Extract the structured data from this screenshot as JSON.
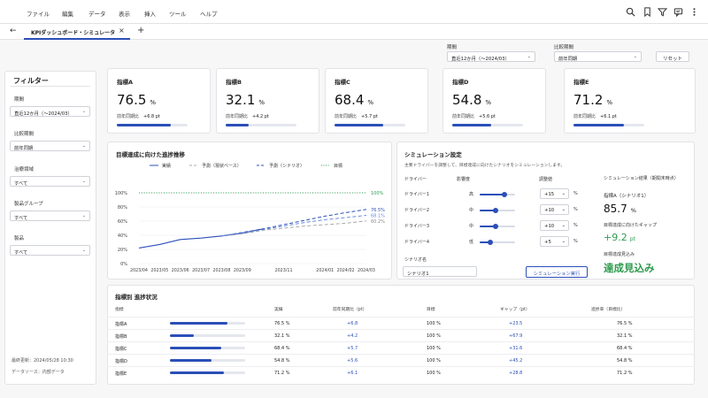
{
  "menu": [
    "ファイル",
    "編集",
    "データ",
    "表示",
    "挿入",
    "ツール",
    "ヘルプ"
  ],
  "toolbar_icons": [
    "search-icon",
    "bookmark-icon",
    "filter-icon",
    "comment-icon",
    "more-icon"
  ],
  "tab": {
    "label": "KPIダッシュボード・シミュレータ",
    "close": "×",
    "add": "+",
    "back": "←"
  },
  "header": {
    "period_label": "期間",
    "period_value": "直近12か月（〜2024/03）",
    "compare_label": "比較期間",
    "compare_value": "前年同期",
    "reset": "リセット"
  },
  "filters": {
    "title": "フィルター",
    "items": [
      {
        "label": "期間",
        "value": "直近12か月（〜2024/03）"
      },
      {
        "label": "比較期間",
        "value": "前年同期"
      },
      {
        "label": "治療領域",
        "value": "すべて"
      },
      {
        "label": "製品グループ",
        "value": "すべて"
      },
      {
        "label": "製品",
        "value": "すべて"
      }
    ],
    "updated": "最終更新：2024/05/28 10:30",
    "source": "データソース：内部データ"
  },
  "kpis": [
    {
      "title": "指標A",
      "value": "76.5",
      "unit": "%",
      "sub_label": "前年同期比",
      "sub_value": "+6.8 pt",
      "progress": 0.765
    },
    {
      "title": "指標B",
      "value": "32.1",
      "unit": "%",
      "sub_label": "前年同期比",
      "sub_value": "+4.2 pt",
      "progress": 0.321
    },
    {
      "title": "指標C",
      "value": "68.4",
      "unit": "%",
      "sub_label": "前年同期比",
      "sub_value": "+5.7 pt",
      "progress": 0.684
    },
    {
      "title": "指標D",
      "value": "54.8",
      "unit": "%",
      "sub_label": "前年同期比",
      "sub_value": "+5.6 pt",
      "progress": 0.548
    },
    {
      "title": "指標E",
      "value": "71.2",
      "unit": "%",
      "sub_label": "前年同期比",
      "sub_value": "+6.1 pt",
      "progress": 0.712
    }
  ],
  "chart_data": {
    "type": "line",
    "title": "目標達成に向けた進捗推移",
    "x": [
      "2023/04",
      "2023/05",
      "2023/06",
      "2023/07",
      "2023/08",
      "2023/09",
      "2023/10",
      "2023/11",
      "2023/12",
      "2024/01",
      "2024/02",
      "2024/03"
    ],
    "x_tick_labels": [
      "2023/04",
      "2023/05",
      "2023/06",
      "2023/07",
      "2023/08",
      "2023/09",
      "2023/11",
      "2024/01",
      "2024/02",
      "2024/03"
    ],
    "ylim": [
      0,
      100
    ],
    "y_ticks": [
      "0%",
      "20%",
      "40%",
      "60%",
      "80%",
      "100%"
    ],
    "series": [
      {
        "name": "実績",
        "color": "#2b4fb8",
        "style": "solid",
        "values": [
          22,
          27,
          34,
          36,
          39,
          43,
          49,
          null,
          null,
          null,
          null,
          null
        ]
      },
      {
        "name": "予測（現状ベース）",
        "color": "#aaaaaa",
        "style": "dashed",
        "values": [
          null,
          null,
          null,
          null,
          39,
          42,
          47,
          50,
          53,
          55,
          57,
          60.2
        ]
      },
      {
        "name": "予測（シナリオ）",
        "color": "#2b4fb8",
        "style": "dashed",
        "values": [
          null,
          null,
          null,
          null,
          39,
          44,
          49,
          55,
          61,
          67,
          72,
          76.5
        ]
      },
      {
        "name": "予測（シナリオ）",
        "color": "#6a8be0",
        "style": "dashed",
        "values": [
          null,
          null,
          null,
          null,
          39,
          43,
          48,
          53,
          58,
          62,
          65,
          68.1
        ]
      },
      {
        "name": "目標",
        "color": "#2e9b4e",
        "style": "dotted",
        "values": [
          100,
          100,
          100,
          100,
          100,
          100,
          100,
          100,
          100,
          100,
          100,
          100
        ]
      }
    ],
    "end_labels": [
      "100%",
      "76.5%",
      "68.1%",
      "60.2%"
    ],
    "legend": [
      "実績",
      "予測（現状ベース）",
      "予測（シナリオ）",
      "目標"
    ]
  },
  "simulation": {
    "title": "シミュレーション設定",
    "desc": "主要ドライバーを調整して、目標達成に向けたシナリオをシミュレーションします。",
    "headers": [
      "ドライバー",
      "影響度",
      "調整値"
    ],
    "rows": [
      {
        "name": "ドライバー1",
        "impact": "高",
        "adjust": "+15",
        "unit": "%",
        "slider": 0.7
      },
      {
        "name": "ドライバー2",
        "impact": "中",
        "adjust": "+10",
        "unit": "%",
        "slider": 0.45
      },
      {
        "name": "ドライバー3",
        "impact": "中",
        "adjust": "+10",
        "unit": "%",
        "slider": 0.45
      },
      {
        "name": "ドライバー4",
        "impact": "低",
        "adjust": "+5",
        "unit": "%",
        "slider": 0.3
      }
    ],
    "scenario_label": "シナリオ名",
    "scenario_value": "シナリオ1",
    "run_button": "シミュレーション実行",
    "result_title": "シミュレーション結果（期間末時点）",
    "result_kpi_label": "指標A（シナリオ1）",
    "result_kpi_value": "85.7",
    "result_kpi_unit": "%",
    "gap_label": "目標達成に向けたギャップ",
    "gap_value": "+9.2",
    "gap_unit": "pt",
    "outlook_label": "目標達成見込み",
    "outlook_value": "達成見込み"
  },
  "table": {
    "title": "指標別 進捗状況",
    "headers": [
      "指標",
      "実績",
      "前年同期比（pt）",
      "目標",
      "ギャップ（pt）",
      "進捗率（目標比）"
    ],
    "rows": [
      {
        "name": "指標A",
        "actual": "76.5",
        "unit": "%",
        "yoy": "+6.8",
        "target": "100",
        "gap": "+23.5",
        "rate": "76.5",
        "progress": 0.765
      },
      {
        "name": "指標B",
        "actual": "32.1",
        "unit": "%",
        "yoy": "+4.2",
        "target": "100",
        "gap": "+67.9",
        "rate": "32.1",
        "progress": 0.321
      },
      {
        "name": "指標C",
        "actual": "68.4",
        "unit": "%",
        "yoy": "+5.7",
        "target": "100",
        "gap": "+31.6",
        "rate": "68.4",
        "progress": 0.684
      },
      {
        "name": "指標D",
        "actual": "54.8",
        "unit": "%",
        "yoy": "+5.6",
        "target": "100",
        "gap": "+45.2",
        "rate": "54.8",
        "progress": 0.548
      },
      {
        "name": "指標E",
        "actual": "71.2",
        "unit": "%",
        "yoy": "+6.1",
        "target": "100",
        "gap": "+28.8",
        "rate": "71.2",
        "progress": 0.712
      }
    ]
  },
  "colors": {
    "accent": "#2b4fb8",
    "success": "#2e9b4e",
    "muted": "#aaaaaa"
  }
}
